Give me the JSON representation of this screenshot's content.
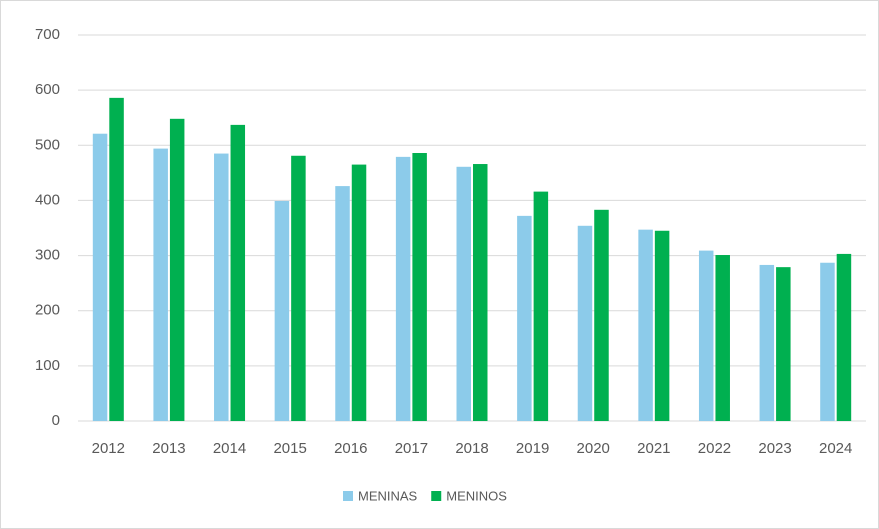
{
  "chart_data": {
    "type": "bar",
    "categories": [
      "2012",
      "2013",
      "2014",
      "2015",
      "2016",
      "2017",
      "2018",
      "2019",
      "2020",
      "2021",
      "2022",
      "2023",
      "2024"
    ],
    "series": [
      {
        "name": "MENINAS",
        "color": "#8ccbea",
        "values": [
          521,
          494,
          485,
          399,
          426,
          479,
          461,
          372,
          354,
          347,
          309,
          283,
          287
        ]
      },
      {
        "name": "MENINOS",
        "color": "#00b050",
        "values": [
          586,
          548,
          537,
          481,
          465,
          486,
          466,
          416,
          383,
          345,
          301,
          279,
          303
        ]
      }
    ],
    "ylim": [
      0,
      700
    ],
    "yticks": [
      0,
      100,
      200,
      300,
      400,
      500,
      600,
      700
    ],
    "grid": true,
    "legend": "bottom"
  }
}
